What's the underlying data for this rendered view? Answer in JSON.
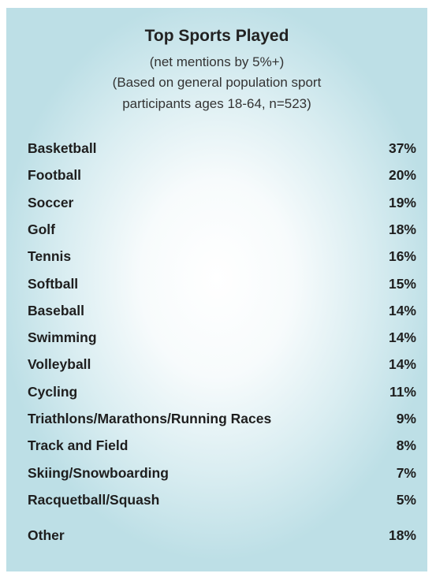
{
  "chart_data": {
    "type": "table",
    "title": "Top Sports Played",
    "subtitle_lines": [
      "(net mentions by 5%+)",
      "(Based on general population sport",
      "participants ages 18-64, n=523)"
    ],
    "rows": [
      {
        "label": "Basketball",
        "value": "37%"
      },
      {
        "label": "Football",
        "value": "20%"
      },
      {
        "label": "Soccer",
        "value": "19%"
      },
      {
        "label": "Golf",
        "value": "18%"
      },
      {
        "label": "Tennis",
        "value": "16%"
      },
      {
        "label": "Softball",
        "value": "15%"
      },
      {
        "label": "Baseball",
        "value": "14%"
      },
      {
        "label": "Swimming",
        "value": "14%"
      },
      {
        "label": "Volleyball",
        "value": "14%"
      },
      {
        "label": "Cycling",
        "value": "11%"
      },
      {
        "label": "Triathlons/Marathons/Running Races",
        "value": "9%"
      },
      {
        "label": "Track and Field",
        "value": "8%"
      },
      {
        "label": "Skiing/Snowboarding",
        "value": "7%"
      },
      {
        "label": "Racquetball/Squash",
        "value": "5%"
      },
      {
        "label": "Other",
        "value": "18%"
      }
    ]
  }
}
